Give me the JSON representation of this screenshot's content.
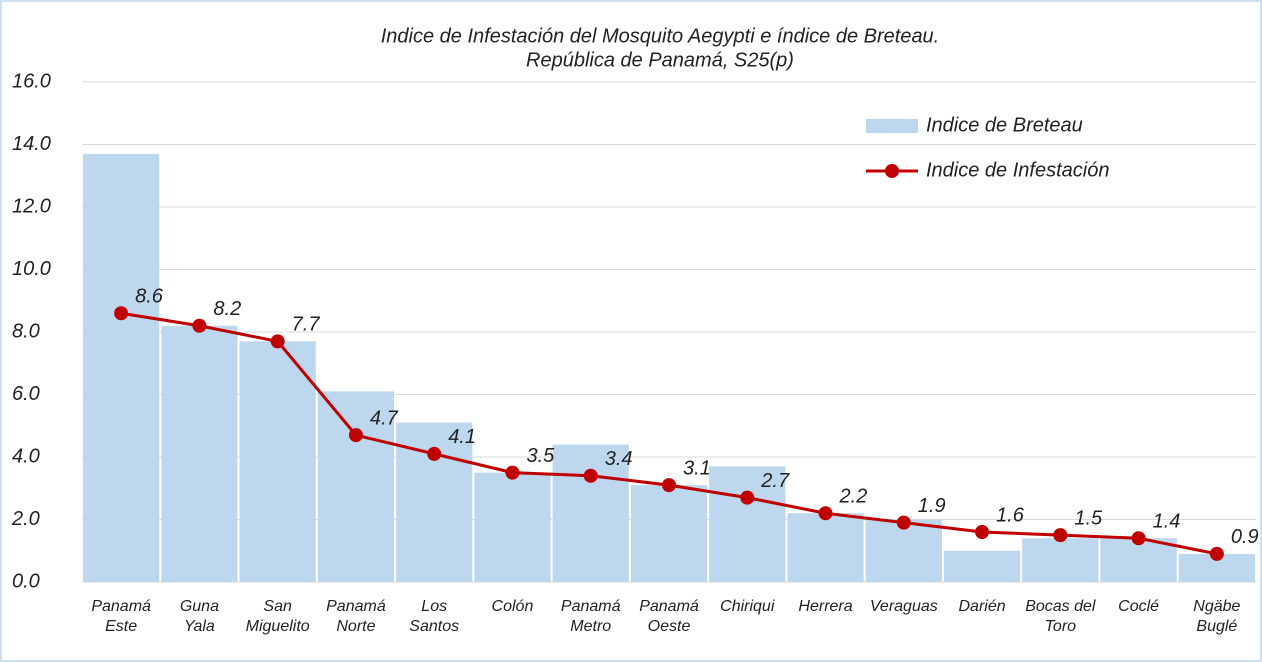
{
  "chart_data": {
    "type": "bar_line",
    "title": "Indice de Infestación del Mosquito Aegypti e índice de Breteau.",
    "subtitle": "República de Panamá, S25(p)",
    "categories": [
      "Panamá\nEste",
      "Guna\nYala",
      "San\nMiguelito",
      "Panamá\nNorte",
      "Los\nSantos",
      "Colón",
      "Panamá\nMetro",
      "Panamá\nOeste",
      "Chiriqui",
      "Herrera",
      "Veraguas",
      "Darién",
      "Bocas del\nToro",
      "Coclé",
      "Ngäbe\nBuglé"
    ],
    "series": [
      {
        "name": "Indice de Breteau",
        "kind": "bar",
        "color": "#bdd7ee",
        "values": [
          13.7,
          8.2,
          7.7,
          6.1,
          5.1,
          3.5,
          4.4,
          3.1,
          3.7,
          2.2,
          2.0,
          1.0,
          1.4,
          1.4,
          0.9
        ]
      },
      {
        "name": "Indice de Infestación",
        "kind": "line",
        "color": "#c00000",
        "values": [
          8.6,
          8.2,
          7.7,
          4.7,
          4.1,
          3.5,
          3.4,
          3.1,
          2.7,
          2.2,
          1.9,
          1.6,
          1.5,
          1.4,
          0.9
        ]
      }
    ],
    "ylim": [
      0,
      16
    ],
    "yticks": [
      {
        "value": 0,
        "label": "0.0"
      },
      {
        "value": 2,
        "label": "2.0"
      },
      {
        "value": 4,
        "label": "4.0"
      },
      {
        "value": 6,
        "label": "6.0"
      },
      {
        "value": 8,
        "label": "8.0"
      },
      {
        "value": 10,
        "label": "10.0"
      },
      {
        "value": 12,
        "label": "12.0"
      },
      {
        "value": 14,
        "label": "14.0"
      },
      {
        "value": 16,
        "label": "16.0"
      }
    ],
    "grid": true,
    "legend": "top-right"
  }
}
